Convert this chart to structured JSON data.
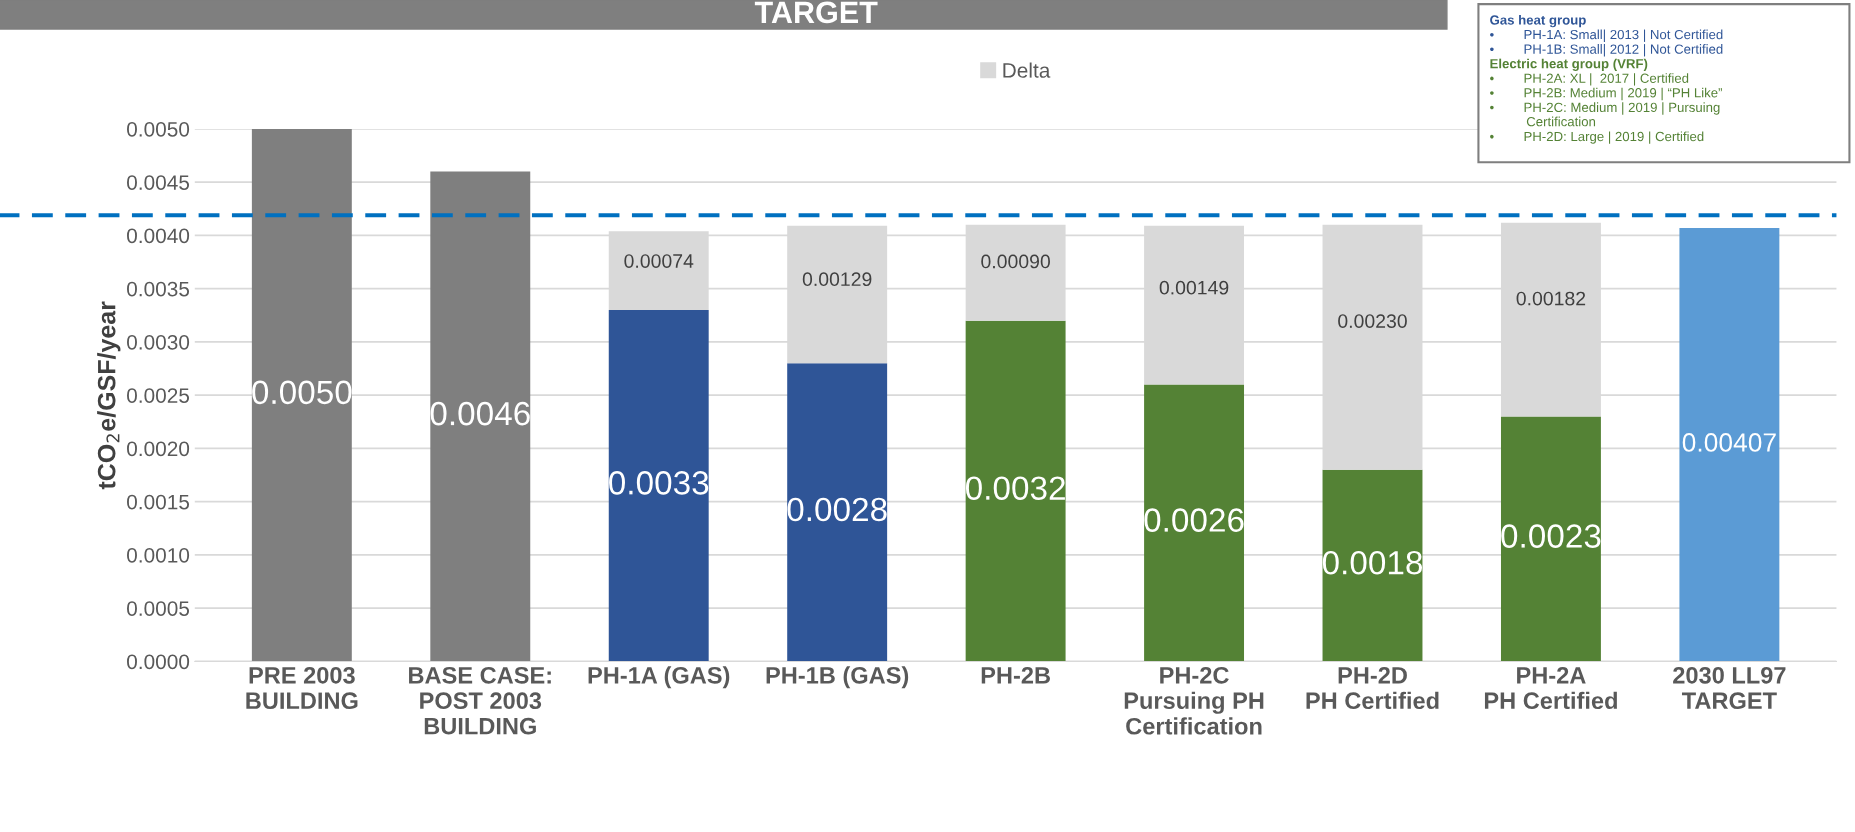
{
  "chart_data": {
    "type": "bar",
    "title": "TARGET",
    "ylabel": "tCO$_{2}$e/GSF/year",
    "categories": [
      "PRE 2003\nBUILDING",
      "BASE CASE:\nPOST 2003\nBUILDING",
      "PH-1A (GAS)",
      "PH-1B (GAS)",
      "PH-2B",
      "PH-2C\nPursuing PH\nCertification",
      "PH-2D\nPH Certified",
      "PH-2A\nPH Certified",
      "2030 LL97\nTARGET"
    ],
    "stacked": true,
    "series": [
      {
        "colors": [
          "#7f7f7f",
          "#7f7f7f",
          "#2f5597",
          "#2f5597",
          "#548235",
          "#548235",
          "#548235",
          "#548235",
          "#5b9bd5"
        ],
        "values": [
          0.005,
          0.0046,
          0.0033,
          0.0028,
          0.0032,
          0.0026,
          0.0018,
          0.0023,
          0.00407
        ],
        "value_labels": [
          "0.0050",
          "0.0046",
          "0.0033",
          "0.0028",
          "0.0032",
          "0.0026",
          "0.0018",
          "0.0023",
          "0.00407"
        ]
      },
      {
        "name": "Delta",
        "color": "#d9d9d9",
        "values": [
          null,
          null,
          0.00074,
          0.00129,
          0.0009,
          0.00149,
          0.0023,
          0.00182,
          null
        ],
        "value_labels": [
          null,
          null,
          "0.00074",
          "0.00129",
          "0.00090",
          "0.00149",
          "0.00230",
          "0.00182",
          null
        ]
      }
    ],
    "ylim": [
      0,
      0.005
    ],
    "yticks": [
      {
        "value": 0,
        "label": "0.0000"
      },
      {
        "value": 0.0005,
        "label": "0.0005"
      },
      {
        "value": 0.001,
        "label": "0.0010"
      },
      {
        "value": 0.0015,
        "label": "0.0015"
      },
      {
        "value": 0.002,
        "label": "0.0020"
      },
      {
        "value": 0.0025,
        "label": "0.0025"
      },
      {
        "value": 0.003,
        "label": "0.0030"
      },
      {
        "value": 0.0035,
        "label": "0.0035"
      },
      {
        "value": 0.004,
        "label": "0.0040"
      },
      {
        "value": 0.0045,
        "label": "0.0045"
      },
      {
        "value": 0.005,
        "label": "0.0050"
      }
    ],
    "ref_lines": [
      {
        "axis": "y",
        "value": 0.00419,
        "color": "#0070c0",
        "line_style": "dashed"
      }
    ],
    "grid": "y",
    "legend": "top",
    "annotations": [
      "Gas heat group",
      "•        PH-1A: Small| 2013 | Not Certified",
      "•        PH-1B: Small| 2012 | Not Certified",
      "Electric heat group (VRF)",
      "•        PH-2A: XL |  2017 | Certified",
      "•        PH-2B: Medium | 2019 | “PH Like”",
      "•        PH-2C: Medium | 2019 | Pursuing\n          Certification",
      "•        PH-2D: Large | 2019 | Certified"
    ]
  }
}
